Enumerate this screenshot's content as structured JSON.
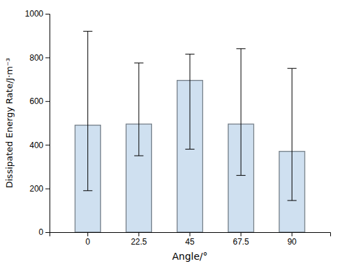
{
  "chart_data": {
    "type": "bar",
    "categories": [
      "0",
      "22.5",
      "45",
      "67.5",
      "90"
    ],
    "values": [
      490,
      495,
      695,
      495,
      370
    ],
    "errors_lower": [
      300,
      145,
      315,
      235,
      225
    ],
    "errors_upper": [
      430,
      280,
      120,
      345,
      380
    ],
    "color": "#cfe0f0",
    "xlabel": "Angle/°",
    "ylabel": "Dissipated Energy Rate/J·m⁻³",
    "ylim": [
      0,
      1000
    ],
    "yticks": [
      0,
      200,
      400,
      600,
      800,
      1000
    ]
  }
}
